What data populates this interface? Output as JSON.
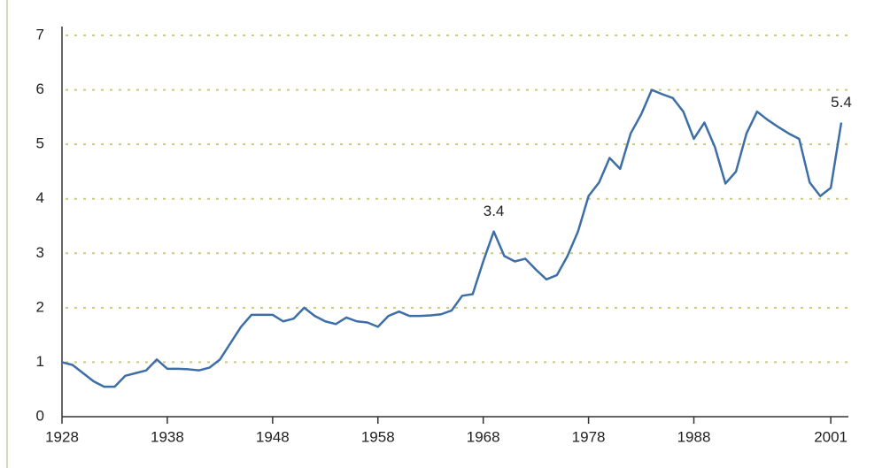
{
  "chart_data": {
    "type": "line",
    "x": [
      1928,
      1929,
      1930,
      1931,
      1932,
      1933,
      1934,
      1935,
      1936,
      1937,
      1938,
      1939,
      1940,
      1941,
      1942,
      1943,
      1944,
      1945,
      1946,
      1947,
      1948,
      1949,
      1950,
      1951,
      1952,
      1953,
      1954,
      1955,
      1956,
      1957,
      1958,
      1959,
      1960,
      1961,
      1962,
      1963,
      1964,
      1965,
      1966,
      1967,
      1968,
      1969,
      1970,
      1971,
      1972,
      1973,
      1974,
      1975,
      1976,
      1977,
      1978,
      1979,
      1980,
      1981,
      1982,
      1983,
      1984,
      1985,
      1986,
      1987,
      1988,
      1989,
      1990,
      1991,
      1992,
      1993,
      1994,
      1995,
      1996,
      1997,
      1998,
      1999,
      2000,
      2001,
      2002
    ],
    "series": [
      {
        "color": "#3d6ea6",
        "values": [
          1.0,
          0.95,
          0.8,
          0.65,
          0.55,
          0.55,
          0.75,
          0.8,
          0.85,
          1.05,
          0.88,
          0.88,
          0.87,
          0.85,
          0.9,
          1.05,
          1.35,
          1.65,
          1.87,
          1.87,
          1.87,
          1.75,
          1.8,
          2.0,
          1.85,
          1.75,
          1.7,
          1.82,
          1.75,
          1.73,
          1.65,
          1.85,
          1.93,
          1.85,
          1.85,
          1.86,
          1.88,
          1.95,
          2.22,
          2.25,
          2.85,
          3.4,
          2.95,
          2.85,
          2.9,
          2.7,
          2.52,
          2.6,
          2.95,
          3.4,
          4.05,
          4.3,
          4.75,
          4.55,
          5.2,
          5.55,
          6.0,
          5.92,
          5.85,
          5.6,
          5.1,
          5.4,
          4.95,
          4.28,
          4.5,
          5.2,
          5.6,
          5.45,
          5.32,
          5.2,
          5.1,
          4.3,
          4.05,
          4.2,
          5.4
        ]
      }
    ],
    "xlim": [
      1928,
      2002
    ],
    "xticks": [
      1928,
      1938,
      1948,
      1958,
      1968,
      1978,
      1988,
      2001
    ],
    "ylim": [
      0,
      7
    ],
    "yticks": [
      0,
      1,
      2,
      3,
      4,
      5,
      6,
      7
    ],
    "grid": true,
    "annotations": [
      {
        "text": "3.4",
        "x": 1969,
        "y": 3.4
      },
      {
        "text": "5.4",
        "x": 2002,
        "y": 5.4
      }
    ]
  }
}
